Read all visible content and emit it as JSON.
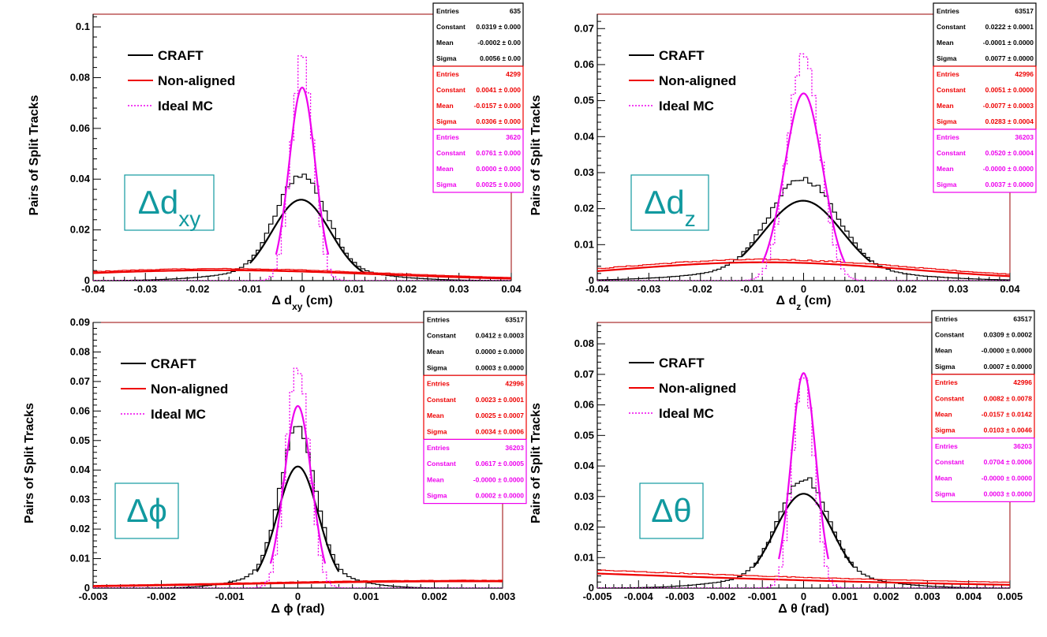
{
  "figure": {
    "colors": {
      "craft": "#000000",
      "nonaligned": "#ee0000",
      "ideal": "#ee00ee",
      "label_box": "#11999f",
      "frame": "#990000"
    },
    "ylabel": "Pairs of Split Tracks"
  },
  "chart_data": [
    {
      "type": "histogram",
      "id": "dxy",
      "xlim": [
        -0.04,
        0.04
      ],
      "ylim": [
        0,
        0.105
      ],
      "xticks": [
        -0.04,
        -0.03,
        -0.02,
        -0.01,
        0,
        0.01,
        0.02,
        0.03,
        0.04
      ],
      "xtick_labels": [
        "-0.04",
        "-0.03",
        "-0.02",
        "-0.01",
        "0",
        "0.01",
        "0.02",
        "0.03",
        "0.04"
      ],
      "yticks": [
        0,
        0.02,
        0.04,
        0.06,
        0.08,
        0.1
      ],
      "ytick_labels": [
        "0",
        "0.02",
        "0.04",
        "0.06",
        "0.08",
        "0.1"
      ],
      "xlabel": "Δ d",
      "xlabel_sub": "xy",
      "xlabel_unit": " (cm)",
      "ylabel": "Pairs of Split Tracks",
      "panel_label": "Δd",
      "panel_label_sub": "xy",
      "legend": [
        "CRAFT",
        "Non-aligned",
        "Ideal MC"
      ],
      "stats": [
        {
          "series": "CRAFT",
          "rows": [
            [
              "Entries",
              "635"
            ],
            [
              "Constant",
              "0.0319 ± 0.000"
            ],
            [
              "Mean",
              "-0.0002 ± 0.00"
            ],
            [
              "Sigma",
              "0.0056 ± 0.00"
            ]
          ]
        },
        {
          "series": "Non-aligned",
          "rows": [
            [
              "Entries",
              "4299"
            ],
            [
              "Constant",
              "0.0041 ± 0.000"
            ],
            [
              "Mean",
              "-0.0157 ± 0.000"
            ],
            [
              "Sigma",
              "0.0306 ± 0.000"
            ]
          ]
        },
        {
          "series": "Ideal MC",
          "rows": [
            [
              "Entries",
              "3620"
            ],
            [
              "Constant",
              "0.0761 ± 0.000"
            ],
            [
              "Mean",
              "0.0000 ± 0.000"
            ],
            [
              "Sigma",
              "0.0025 ± 0.000"
            ]
          ]
        }
      ],
      "series": [
        {
          "name": "CRAFT",
          "style": "solid",
          "constant": 0.0319,
          "mean": -0.0002,
          "sigma": 0.0056,
          "hist_peak": 0.037,
          "fit_range": [
            -0.01,
            0.012
          ]
        },
        {
          "name": "Non-aligned",
          "style": "solid",
          "constant": 0.0041,
          "mean": -0.0157,
          "sigma": 0.0306,
          "hist_peak": 0.0041,
          "fit_range": [
            -0.04,
            0.04
          ]
        },
        {
          "name": "Ideal MC",
          "style": "dotted",
          "constant": 0.0761,
          "mean": 0.0,
          "sigma": 0.0025,
          "hist_peak": 0.088,
          "fit_range": [
            -0.005,
            0.005
          ]
        }
      ]
    },
    {
      "type": "histogram",
      "id": "dz",
      "xlim": [
        -0.04,
        0.04
      ],
      "ylim": [
        0,
        0.074
      ],
      "xticks": [
        -0.04,
        -0.03,
        -0.02,
        -0.01,
        0,
        0.01,
        0.02,
        0.03,
        0.04
      ],
      "xtick_labels": [
        "-0.04",
        "-0.03",
        "-0.02",
        "-0.01",
        "0",
        "0.01",
        "0.02",
        "0.03",
        "0.04"
      ],
      "yticks": [
        0,
        0.01,
        0.02,
        0.03,
        0.04,
        0.05,
        0.06,
        0.07
      ],
      "ytick_labels": [
        "0",
        "0.01",
        "0.02",
        "0.03",
        "0.04",
        "0.05",
        "0.06",
        "0.07"
      ],
      "xlabel": "Δ d",
      "xlabel_sub": "z",
      "xlabel_unit": " (cm)",
      "ylabel": "Pairs of Split Tracks",
      "panel_label": "Δd",
      "panel_label_sub": "z",
      "legend": [
        "CRAFT",
        "Non-aligned",
        "Ideal MC"
      ],
      "stats": [
        {
          "series": "CRAFT",
          "rows": [
            [
              "Entries",
              "63517"
            ],
            [
              "Constant",
              "0.0222 ± 0.0001"
            ],
            [
              "Mean",
              "-0.0001 ± 0.0000"
            ],
            [
              "Sigma",
              "0.0077 ± 0.0000"
            ]
          ]
        },
        {
          "series": "Non-aligned",
          "rows": [
            [
              "Entries",
              "42996"
            ],
            [
              "Constant",
              "0.0051 ± 0.0000"
            ],
            [
              "Mean",
              "-0.0077 ± 0.0003"
            ],
            [
              "Sigma",
              "0.0283 ± 0.0004"
            ]
          ]
        },
        {
          "series": "Ideal MC",
          "rows": [
            [
              "Entries",
              "36203"
            ],
            [
              "Constant",
              "0.0520 ± 0.0004"
            ],
            [
              "Mean",
              "-0.0000 ± 0.0000"
            ],
            [
              "Sigma",
              "0.0037 ± 0.0000"
            ]
          ]
        }
      ],
      "series": [
        {
          "name": "CRAFT",
          "style": "solid",
          "constant": 0.0222,
          "mean": -0.0001,
          "sigma": 0.0077,
          "hist_peak": 0.025,
          "fit_range": [
            -0.012,
            0.013
          ]
        },
        {
          "name": "Non-aligned",
          "style": "solid",
          "constant": 0.0051,
          "mean": -0.0077,
          "sigma": 0.0283,
          "hist_peak": 0.0051,
          "fit_range": [
            -0.04,
            0.04
          ]
        },
        {
          "name": "Ideal MC",
          "style": "dotted",
          "constant": 0.052,
          "mean": 0.0,
          "sigma": 0.0037,
          "hist_peak": 0.062,
          "fit_range": [
            -0.008,
            0.008
          ]
        }
      ]
    },
    {
      "type": "histogram",
      "id": "phi",
      "xlim": [
        -0.003,
        0.003
      ],
      "ylim": [
        0,
        0.09
      ],
      "xticks": [
        -0.003,
        -0.002,
        -0.001,
        0,
        0.001,
        0.002,
        0.003
      ],
      "xtick_labels": [
        "-0.003",
        "-0.002",
        "-0.001",
        "0",
        "0.001",
        "0.002",
        "0.003"
      ],
      "yticks": [
        0,
        0.01,
        0.02,
        0.03,
        0.04,
        0.05,
        0.06,
        0.07,
        0.08,
        0.09
      ],
      "ytick_labels": [
        "0",
        "0.01",
        "0.02",
        "0.03",
        "0.04",
        "0.05",
        "0.06",
        "0.07",
        "0.08",
        "0.09"
      ],
      "xlabel": "Δ ϕ",
      "xlabel_sub": "",
      "xlabel_unit": " (rad)",
      "ylabel": "Pairs of Split Tracks",
      "panel_label": "Δϕ",
      "panel_label_sub": "",
      "legend": [
        "CRAFT",
        "Non-aligned",
        "Ideal MC"
      ],
      "stats": [
        {
          "series": "CRAFT",
          "rows": [
            [
              "Entries",
              "63517"
            ],
            [
              "Constant",
              "0.0412 ± 0.0003"
            ],
            [
              "Mean",
              "0.0000 ± 0.0000"
            ],
            [
              "Sigma",
              "0.0003 ± 0.0000"
            ]
          ]
        },
        {
          "series": "Non-aligned",
          "rows": [
            [
              "Entries",
              "42996"
            ],
            [
              "Constant",
              "0.0023 ± 0.0001"
            ],
            [
              "Mean",
              "0.0025 ± 0.0007"
            ],
            [
              "Sigma",
              "0.0034 ± 0.0006"
            ]
          ]
        },
        {
          "series": "Ideal MC",
          "rows": [
            [
              "Entries",
              "36203"
            ],
            [
              "Constant",
              "0.0617 ± 0.0005"
            ],
            [
              "Mean",
              "-0.0000 ± 0.0000"
            ],
            [
              "Sigma",
              "0.0002 ± 0.0000"
            ]
          ]
        }
      ],
      "series": [
        {
          "name": "CRAFT",
          "style": "solid",
          "constant": 0.0412,
          "mean": 0.0,
          "sigma": 0.0003,
          "hist_peak": 0.048,
          "fit_range": [
            -0.0006,
            0.0006
          ]
        },
        {
          "name": "Non-aligned",
          "style": "solid",
          "constant": 0.0023,
          "mean": 0.0025,
          "sigma": 0.0034,
          "hist_peak": 0.0023,
          "fit_range": [
            -0.003,
            0.003
          ]
        },
        {
          "name": "Ideal MC",
          "style": "dotted",
          "constant": 0.0617,
          "mean": 0.0,
          "sigma": 0.0002,
          "hist_peak": 0.075,
          "fit_range": [
            -0.0004,
            0.0004
          ]
        }
      ]
    },
    {
      "type": "histogram",
      "id": "theta",
      "xlim": [
        -0.005,
        0.005
      ],
      "ylim": [
        0,
        0.087
      ],
      "xticks": [
        -0.005,
        -0.004,
        -0.003,
        -0.002,
        -0.001,
        0,
        0.001,
        0.002,
        0.003,
        0.004,
        0.005
      ],
      "xtick_labels": [
        "-0.005",
        "-0.004",
        "-0.003",
        "-0.002",
        "-0.001",
        "0",
        "0.001",
        "0.002",
        "0.003",
        "0.004",
        "0.005"
      ],
      "yticks": [
        0,
        0.01,
        0.02,
        0.03,
        0.04,
        0.05,
        0.06,
        0.07,
        0.08
      ],
      "ytick_labels": [
        "0",
        "0.01",
        "0.02",
        "0.03",
        "0.04",
        "0.05",
        "0.06",
        "0.07",
        "0.08"
      ],
      "xlabel": "Δ θ",
      "xlabel_sub": "",
      "xlabel_unit": " (rad)",
      "ylabel": "Pairs of Split Tracks",
      "panel_label": "Δθ",
      "panel_label_sub": "",
      "legend": [
        "CRAFT",
        "Non-aligned",
        "Ideal MC"
      ],
      "stats": [
        {
          "series": "CRAFT",
          "rows": [
            [
              "Entries",
              "63517"
            ],
            [
              "Constant",
              "0.0309 ± 0.0002"
            ],
            [
              "Mean",
              "-0.0000 ± 0.0000"
            ],
            [
              "Sigma",
              "0.0007 ± 0.0000"
            ]
          ]
        },
        {
          "series": "Non-aligned",
          "rows": [
            [
              "Entries",
              "42996"
            ],
            [
              "Constant",
              "0.0082 ± 0.0078"
            ],
            [
              "Mean",
              "-0.0157 ± 0.0142"
            ],
            [
              "Sigma",
              "0.0103 ± 0.0046"
            ]
          ]
        },
        {
          "series": "Ideal MC",
          "rows": [
            [
              "Entries",
              "36203"
            ],
            [
              "Constant",
              "0.0704 ± 0.0006"
            ],
            [
              "Mean",
              "-0.0000 ± 0.0000"
            ],
            [
              "Sigma",
              "0.0003 ± 0.0000"
            ]
          ]
        }
      ],
      "series": [
        {
          "name": "CRAFT",
          "style": "solid",
          "constant": 0.0309,
          "mean": 0.0,
          "sigma": 0.0007,
          "hist_peak": 0.0315,
          "fit_range": [
            -0.0012,
            0.0012
          ]
        },
        {
          "name": "Non-aligned",
          "style": "solid",
          "constant": 0.0082,
          "mean": -0.0157,
          "sigma": 0.0103,
          "hist_peak": 0.0082,
          "fit_range": [
            -0.005,
            0.005
          ]
        },
        {
          "name": "Ideal MC",
          "style": "dotted",
          "constant": 0.0704,
          "mean": 0.0,
          "sigma": 0.0003,
          "hist_peak": 0.072,
          "fit_range": [
            -0.0006,
            0.0006
          ]
        }
      ]
    }
  ]
}
